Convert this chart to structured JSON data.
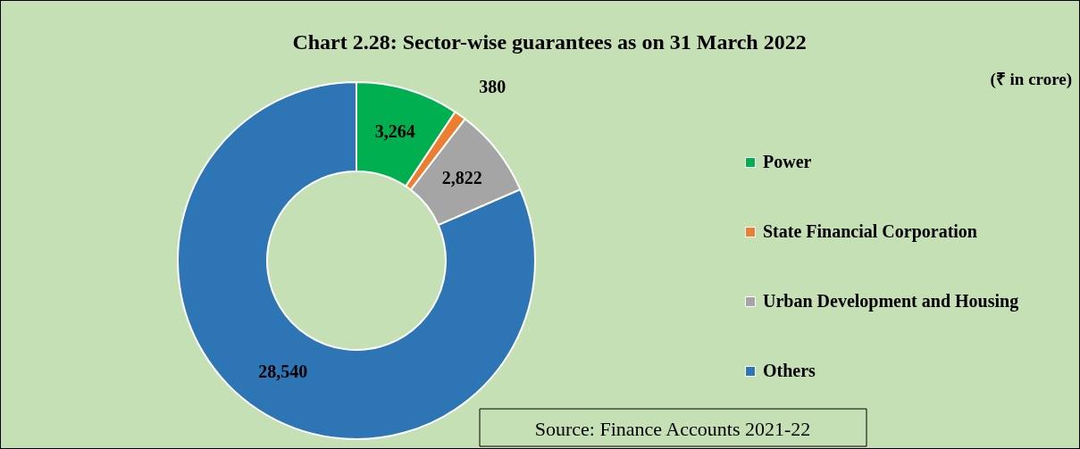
{
  "chart_data": {
    "type": "donut",
    "title": "Chart 2.28: Sector-wise guarantees as on 31 March 2022",
    "subtitle": "(₹ in crore)",
    "categories": [
      "Power",
      "State Financial Corporation",
      "Urban Development and Housing",
      "Others"
    ],
    "values": [
      3264,
      380,
      2822,
      28540
    ],
    "colors": [
      "#00b050",
      "#ed7d31",
      "#a5a5a5",
      "#2e75b6"
    ],
    "value_labels": [
      "3,264",
      "380",
      "2,822",
      "28,540"
    ],
    "legend": "right",
    "annotations": [
      "Source: Finance Accounts 2021-22"
    ]
  }
}
